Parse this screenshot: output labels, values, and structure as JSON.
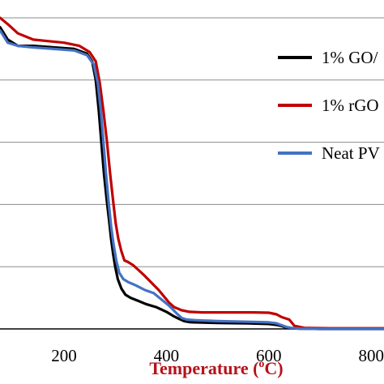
{
  "chart_data": {
    "type": "line",
    "xlabel": "Temperature (",
    "xlabel_sup": "o",
    "xlabel_unit": "C)",
    "xlabel_color": "#b5121b",
    "xlim": [
      75,
      825
    ],
    "ylim": [
      0,
      100
    ],
    "xticks": [
      200,
      400,
      600,
      800
    ],
    "xtick_labels": [
      "200",
      "400",
      "600",
      "800"
    ],
    "grid": "horizontal",
    "legend_position": "right",
    "series": [
      {
        "name": "1% GO/",
        "color": "#000000",
        "x": [
          75,
          90,
          110,
          140,
          180,
          220,
          245,
          255,
          262,
          268,
          273,
          278,
          283,
          288,
          292,
          296,
          300,
          305,
          312,
          320,
          330,
          345,
          360,
          380,
          400,
          415,
          425,
          435,
          445,
          455,
          500,
          560,
          600,
          615,
          625,
          635,
          645,
          660,
          700,
          760,
          825
        ],
        "y": [
          97,
          93,
          91,
          91,
          90.5,
          90,
          88.5,
          86,
          80,
          70,
          60,
          50,
          42,
          35,
          29,
          24,
          20,
          16,
          13,
          11,
          10,
          9,
          8,
          7,
          5.5,
          4,
          3.2,
          2.5,
          2.2,
          2.1,
          1.9,
          1.8,
          1.6,
          1.3,
          0.9,
          0.4,
          0.2,
          0.1,
          0,
          0,
          0
        ]
      },
      {
        "name": "1% rGO",
        "color": "#c00000",
        "x": [
          75,
          90,
          110,
          140,
          170,
          200,
          230,
          250,
          262,
          270,
          277,
          284,
          290,
          296,
          301,
          306,
          312,
          318,
          325,
          335,
          345,
          358,
          370,
          385,
          395,
          405,
          415,
          430,
          445,
          470,
          520,
          570,
          600,
          615,
          625,
          640,
          650,
          670,
          720,
          780,
          825
        ],
        "y": [
          100,
          98,
          95,
          93,
          92.5,
          92,
          91,
          89,
          86,
          79,
          70,
          60,
          50,
          41,
          34,
          29,
          25,
          22,
          21.5,
          20.5,
          19,
          17,
          15,
          12.5,
          10.5,
          8.5,
          7,
          6,
          5.5,
          5.3,
          5.3,
          5.3,
          5.2,
          4.7,
          3.8,
          3,
          1,
          0.3,
          0.2,
          0.2,
          0.2
        ]
      },
      {
        "name": "Neat PV",
        "color": "#4472c4",
        "x": [
          75,
          90,
          110,
          140,
          180,
          220,
          245,
          258,
          266,
          272,
          277,
          282,
          287,
          292,
          297,
          302,
          308,
          316,
          326,
          340,
          358,
          375,
          390,
          405,
          420,
          430,
          440,
          455,
          500,
          560,
          600,
          615,
          625,
          635,
          645,
          660,
          700,
          760,
          825
        ],
        "y": [
          96,
          92,
          91,
          90.5,
          90,
          89.5,
          88,
          85,
          79,
          70,
          60,
          50,
          41,
          33,
          27,
          22,
          18,
          16,
          15,
          14,
          12.5,
          11.5,
          9.5,
          7.5,
          5,
          3.5,
          3,
          2.8,
          2.5,
          2.3,
          2.1,
          1.8,
          1.2,
          0.6,
          0.3,
          0.1,
          0,
          0,
          0
        ]
      }
    ]
  }
}
